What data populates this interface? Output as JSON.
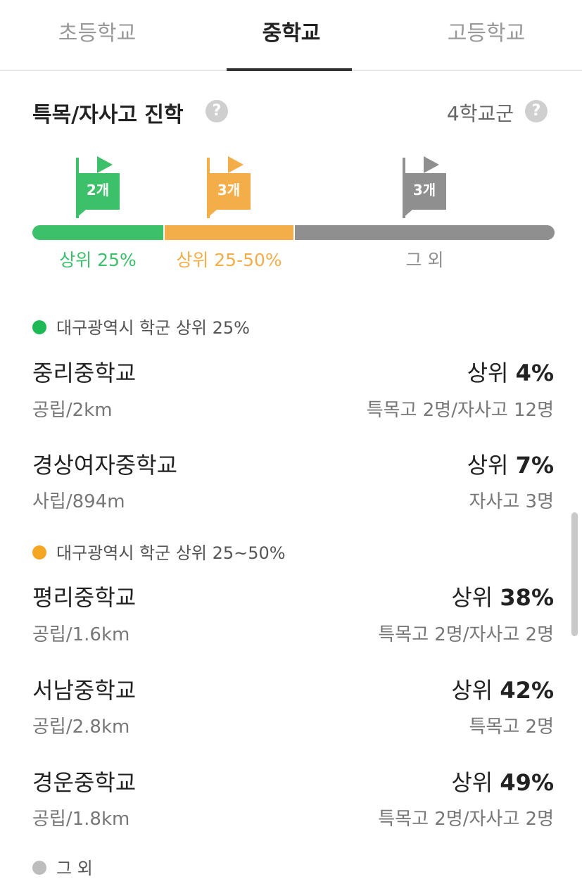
{
  "tabs": [
    {
      "label": "초등학교"
    },
    {
      "label": "중학교"
    },
    {
      "label": "고등학교"
    }
  ],
  "section": {
    "title": "특목/자사고 진학",
    "help": "?",
    "group": "4학교군"
  },
  "tiers": [
    {
      "count": "2개",
      "label": "상위 25%",
      "color": "#3cc06a"
    },
    {
      "count": "3개",
      "label": "상위 25-50%",
      "color": "#f3ae4a"
    },
    {
      "count": "3개",
      "label": "그 외",
      "color": "#8f8f8f"
    }
  ],
  "groups": [
    {
      "legend": "대구광역시 학군 상위 25%",
      "color": "#1db954",
      "schools": [
        {
          "name": "중리중학교",
          "meta": "공립/2km",
          "rank_prefix": "상위 ",
          "rank": "4%",
          "advance": "특목고 2명/자사고 12명"
        },
        {
          "name": "경상여자중학교",
          "meta": "사립/894m",
          "rank_prefix": "상위 ",
          "rank": "7%",
          "advance": "자사고 3명"
        }
      ]
    },
    {
      "legend": "대구광역시 학군 상위 25~50%",
      "color": "#f5a623",
      "schools": [
        {
          "name": "평리중학교",
          "meta": "공립/1.6km",
          "rank_prefix": "상위 ",
          "rank": "38%",
          "advance": "특목고 2명/자사고 2명"
        },
        {
          "name": "서남중학교",
          "meta": "공립/2.8km",
          "rank_prefix": "상위 ",
          "rank": "42%",
          "advance": "특목고 2명"
        },
        {
          "name": "경운중학교",
          "meta": "공립/1.8km",
          "rank_prefix": "상위 ",
          "rank": "49%",
          "advance": "특목고 2명/자사고 2명"
        }
      ]
    },
    {
      "legend": "그 외",
      "color": "#bdbdbd"
    }
  ]
}
